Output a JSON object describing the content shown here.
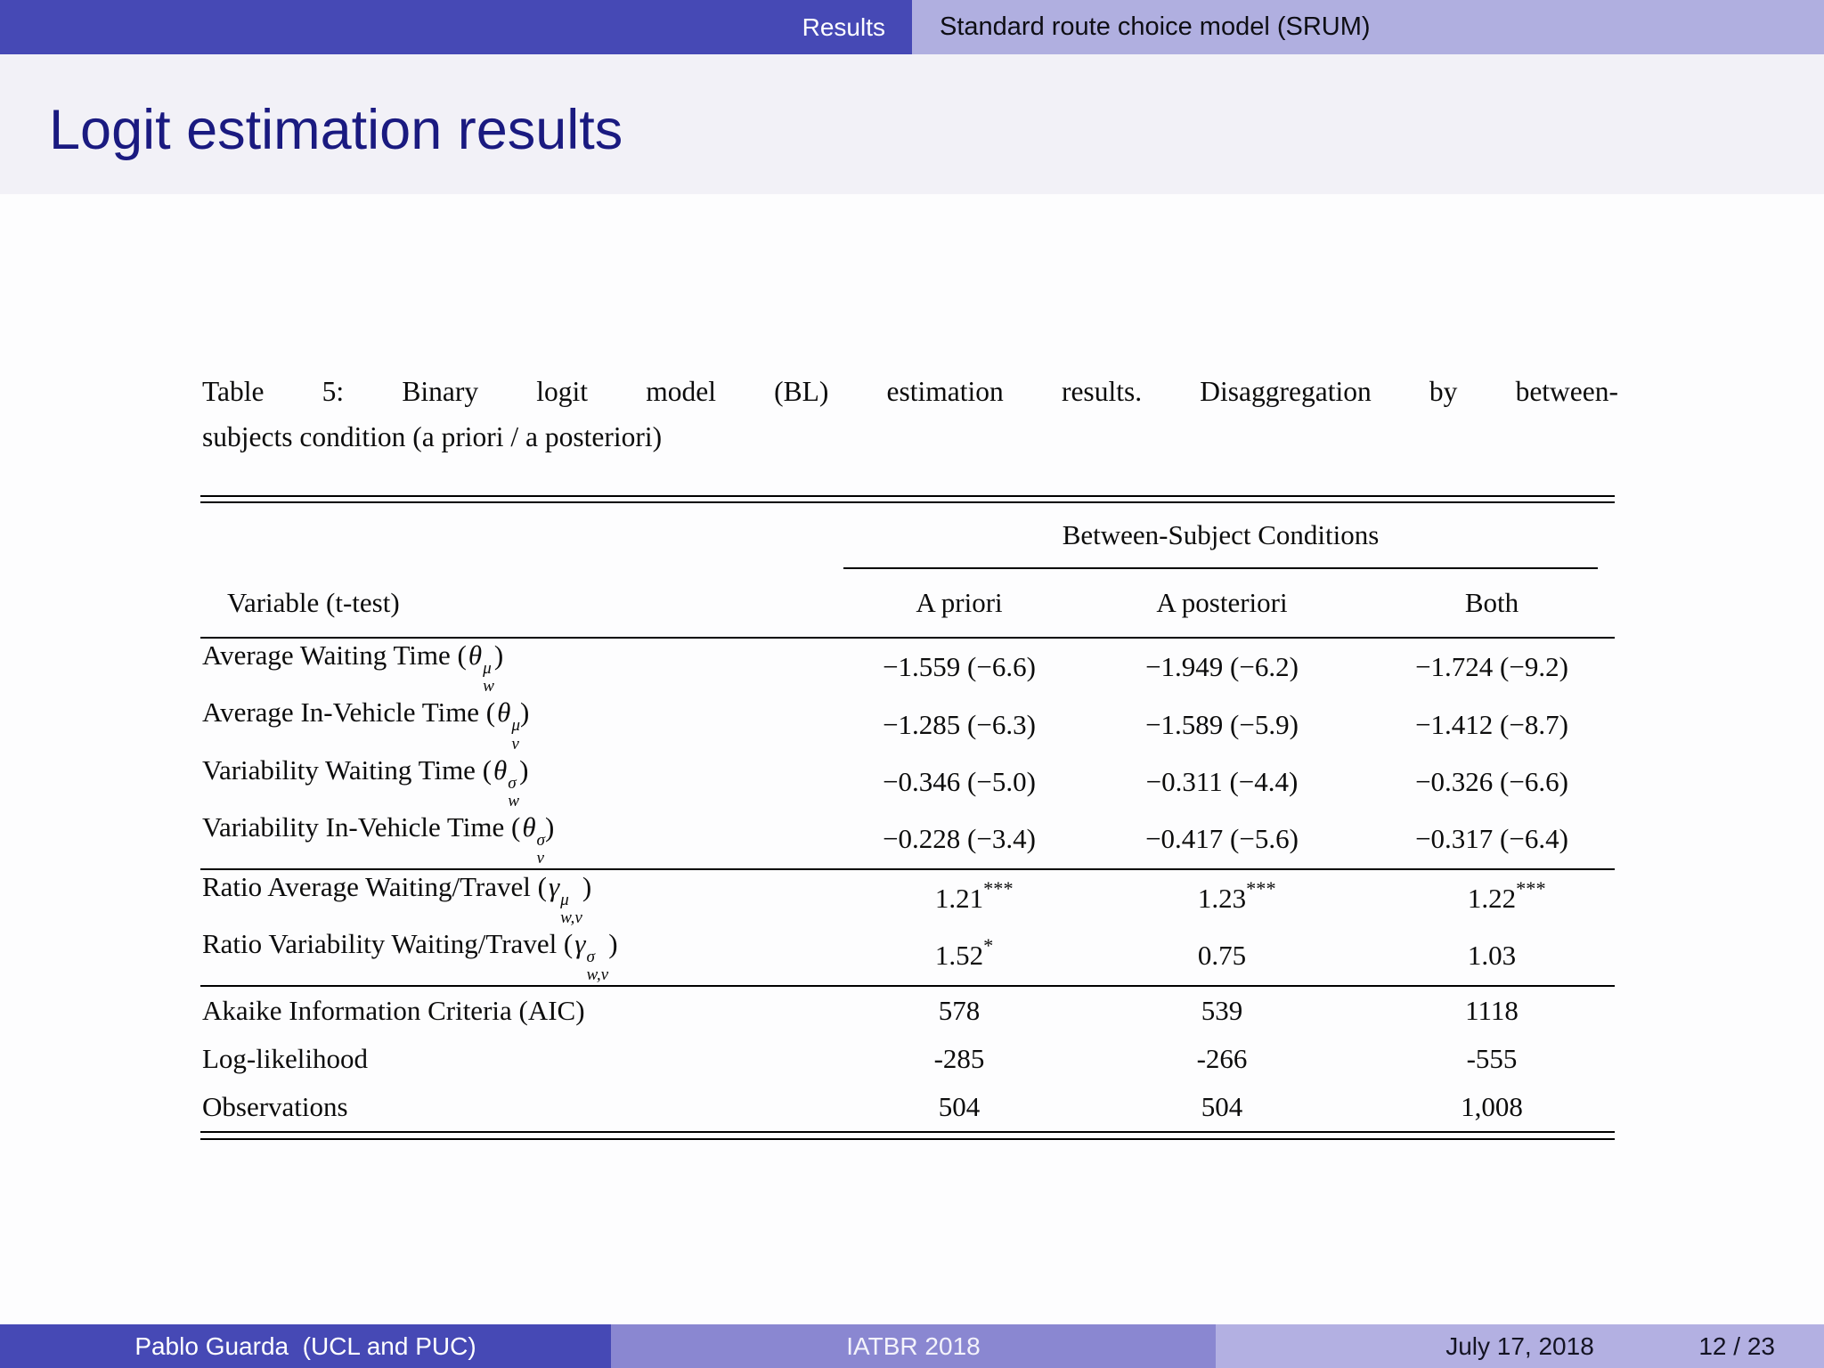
{
  "header": {
    "section": "Results",
    "subsection": "Standard route choice model (SRUM)"
  },
  "title": "Logit estimation results",
  "caption": {
    "line1": "Table 5: Binary logit model (BL) estimation results. Disaggregation by between-",
    "line2": "subjects condition (a priori / a posteriori)"
  },
  "table": {
    "span_header": "Between-Subject Conditions",
    "col1_header": "Variable (t-test)",
    "col_headers": [
      "A priori",
      "A posteriori",
      "Both"
    ],
    "groups": [
      {
        "rows": [
          {
            "prefix": "Average Waiting Time (",
            "symbol": "θ",
            "sup": "μ",
            "sub": "w",
            "suffix": ")",
            "values": [
              "−1.559 (−6.6)",
              "−1.949 (−6.2)",
              "−1.724 (−9.2)"
            ]
          },
          {
            "prefix": "Average In-Vehicle Time (",
            "symbol": "θ",
            "sup": "μ",
            "sub": "v",
            "suffix": ")",
            "values": [
              "−1.285 (−6.3)",
              "−1.589 (−5.9)",
              "−1.412 (−8.7)"
            ]
          },
          {
            "prefix": "Variability Waiting Time (",
            "symbol": "θ",
            "sup": "σ",
            "sub": "w",
            "suffix": ")",
            "values": [
              "−0.346 (−5.0)",
              "−0.311 (−4.4)",
              "−0.326 (−6.6)"
            ]
          },
          {
            "prefix": "Variability In-Vehicle Time (",
            "symbol": "θ",
            "sup": "σ",
            "sub": "v",
            "suffix": ")",
            "values": [
              "−0.228 (−3.4)",
              "−0.417 (−5.6)",
              "−0.317 (−6.4)"
            ]
          }
        ]
      },
      {
        "rows": [
          {
            "prefix": "Ratio Average Waiting/Travel (",
            "symbol": "γ",
            "sup": "μ",
            "sub": "w,v",
            "suffix": ")",
            "values": [
              "1.21",
              "1.23",
              "1.22"
            ],
            "stars": [
              "***",
              "***",
              "***"
            ]
          },
          {
            "prefix": "Ratio Variability Waiting/Travel (",
            "symbol": "γ",
            "sup": "σ",
            "sub": "w,v",
            "suffix": ")",
            "values": [
              "1.52",
              "0.75",
              "1.03"
            ],
            "stars": [
              "*",
              "",
              ""
            ]
          }
        ]
      },
      {
        "rows": [
          {
            "prefix": "Akaike Information Criteria (AIC)",
            "values": [
              "578",
              "539",
              "1118"
            ]
          },
          {
            "prefix": "Log-likelihood",
            "values": [
              "-285",
              "-266",
              "-555"
            ]
          },
          {
            "prefix": "Observations",
            "values": [
              "504",
              "504",
              "1,008"
            ]
          }
        ]
      }
    ]
  },
  "footer": {
    "author": "Pablo Guarda  (UCL and PUC)",
    "conference": "IATBR 2018",
    "date": "July 17, 2018",
    "page": "12 / 23"
  },
  "colors": {
    "header_dark": "#4649b5",
    "header_light": "#b0afe0",
    "title_bg": "#f2f1f7",
    "title_text": "#1a1a80",
    "footer_dark": "#4649b5",
    "footer_mid": "#8a87d1",
    "footer_light": "#b3b0e2",
    "rule": "#000000"
  }
}
